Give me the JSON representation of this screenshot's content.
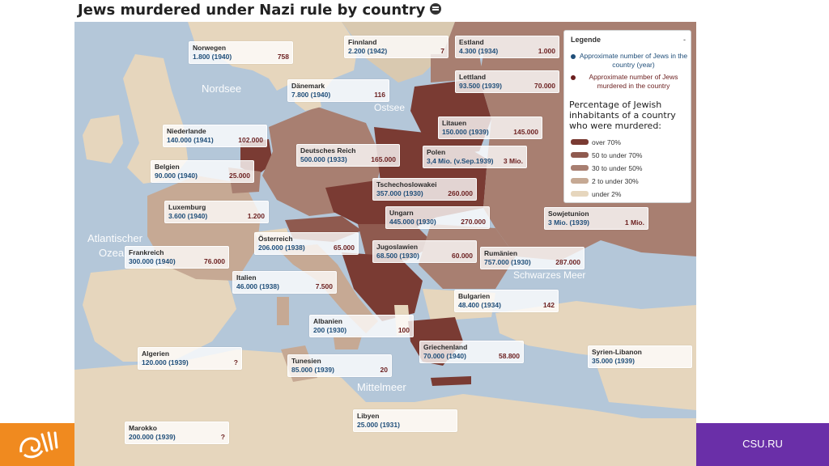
{
  "title": "Jews murdered under Nazi rule by country",
  "seas": [
    {
      "id": "nordsee",
      "label": "Nordsee"
    },
    {
      "id": "ostsee",
      "label": "Ostsee"
    },
    {
      "id": "atlantic1",
      "label": "Atlantischer"
    },
    {
      "id": "atlantic2",
      "label": "Ozea"
    },
    {
      "id": "black-sea",
      "label": "Schwarzes Meer"
    },
    {
      "id": "mittelmeer",
      "label": "Mittelmeer"
    }
  ],
  "countries": [
    {
      "id": "norwegen",
      "name": "Norwegen",
      "pop": "1.800 (1940)",
      "murdered": "758"
    },
    {
      "id": "finnland",
      "name": "Finnland",
      "pop": "2.200 (1942)",
      "murdered": "7"
    },
    {
      "id": "estland",
      "name": "Estland",
      "pop": "4.300 (1934)",
      "murdered": "1.000"
    },
    {
      "id": "lettland",
      "name": "Lettland",
      "pop": "93.500 (1939)",
      "murdered": "70.000"
    },
    {
      "id": "daenemark",
      "name": "Dänemark",
      "pop": "7.800 (1940)",
      "murdered": "116"
    },
    {
      "id": "litauen",
      "name": "Litauen",
      "pop": "150.000 (1939)",
      "murdered": "145.000"
    },
    {
      "id": "niederlande",
      "name": "Niederlande",
      "pop": "140.000 (1941)",
      "murdered": "102.000"
    },
    {
      "id": "deutsches-reich",
      "name": "Deutsches Reich",
      "pop": "500.000 (1933)",
      "murdered": "165.000"
    },
    {
      "id": "polen",
      "name": "Polen",
      "pop": "3,4 Mio. (v.Sep.1939)",
      "murdered": "3 Mio."
    },
    {
      "id": "belgien",
      "name": "Belgien",
      "pop": "90.000 (1940)",
      "murdered": "25.000"
    },
    {
      "id": "tschechoslowakei",
      "name": "Tschechoslowakei",
      "pop": "357.000 (1930)",
      "murdered": "260.000"
    },
    {
      "id": "luxemburg",
      "name": "Luxemburg",
      "pop": "3.600 (1940)",
      "murdered": "1.200"
    },
    {
      "id": "ungarn",
      "name": "Ungarn",
      "pop": "445.000 (1930)",
      "murdered": "270.000"
    },
    {
      "id": "sowjetunion",
      "name": "Sowjetunion",
      "pop": "3 Mio. (1939)",
      "murdered": "1 Mio."
    },
    {
      "id": "oesterreich",
      "name": "Österreich",
      "pop": "206.000 (1938)",
      "murdered": "65.000"
    },
    {
      "id": "frankreich",
      "name": "Frankreich",
      "pop": "300.000 (1940)",
      "murdered": "76.000"
    },
    {
      "id": "jugoslawien",
      "name": "Jugoslawien",
      "pop": "68.500 (1930)",
      "murdered": "60.000"
    },
    {
      "id": "rumaenien",
      "name": "Rumänien",
      "pop": "757.000 (1930)",
      "murdered": "287.000"
    },
    {
      "id": "italien",
      "name": "Italien",
      "pop": "46.000 (1938)",
      "murdered": "7.500"
    },
    {
      "id": "bulgarien",
      "name": "Bulgarien",
      "pop": "48.400 (1934)",
      "murdered": "142"
    },
    {
      "id": "albanien",
      "name": "Albanien",
      "pop": "200 (1930)",
      "murdered": "100"
    },
    {
      "id": "griechenland",
      "name": "Griechenland",
      "pop": "70.000 (1940)",
      "murdered": "58.800"
    },
    {
      "id": "algerien",
      "name": "Algerien",
      "pop": "120.000 (1939)",
      "murdered": "?"
    },
    {
      "id": "tunesien",
      "name": "Tunesien",
      "pop": "85.000 (1939)",
      "murdered": "20"
    },
    {
      "id": "syrien-libanon",
      "name": "Syrien-Libanon",
      "pop": "35.000 (1939)",
      "murdered": ""
    },
    {
      "id": "libyen",
      "name": "Libyen",
      "pop": "25.000 (1931)",
      "murdered": ""
    },
    {
      "id": "marokko",
      "name": "Marokko",
      "pop": "200.000 (1939)",
      "murdered": "?"
    }
  ],
  "legend": {
    "title": "Legende",
    "collapse": "-",
    "pop_label": "Approximate number of Jews in the country (year)",
    "pop_color": "#1f4e79",
    "murdered_label": "Approximate number of Jews murdered in the country",
    "murdered_color": "#6b1f1f",
    "heading": "Percentage of Jewish inhabitants of a country who were murdered:",
    "categories": [
      {
        "label": "over 70%",
        "color": "#7a3b33"
      },
      {
        "label": "50 to under 70%",
        "color": "#8f5a4f"
      },
      {
        "label": "30 to under 50%",
        "color": "#a87f71"
      },
      {
        "label": "2 to under 30%",
        "color": "#c6a994"
      },
      {
        "label": "under 2%",
        "color": "#e6d6bd"
      }
    ]
  },
  "colors": {
    "sea": "#b4c7d9",
    "land_neutral": "#e9dec6",
    "over70": "#7a3b33",
    "from50to70": "#8f5a4f",
    "from30to50": "#a87f71",
    "from2to30": "#c6a994",
    "under2": "#e6d6bd"
  },
  "footer": {
    "brand": "CSU.RU",
    "left_color": "#f08a1f",
    "right_color": "#6a2fa8"
  }
}
